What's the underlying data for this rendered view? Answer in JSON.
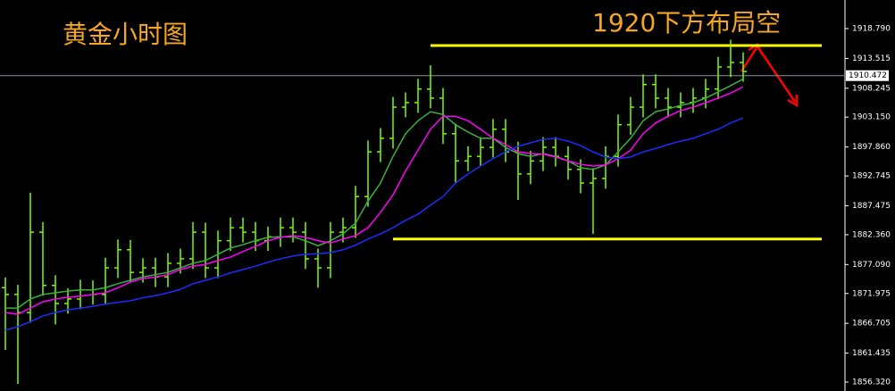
{
  "chart_data": {
    "type": "ohlc",
    "title": "黄金小时图",
    "annotation": "1920下方布局空",
    "bar_color": "#7cfc00",
    "open": [
      1873.0,
      1871.8,
      1868.6,
      1882.8,
      1873.4,
      1870.2,
      1871.0,
      1872.6,
      1871.8,
      1876.5,
      1879.7,
      1875.7,
      1876.5,
      1874.9,
      1877.3,
      1878.1,
      1882.8,
      1876.5,
      1881.3,
      1883.6,
      1882.8,
      1881.3,
      1882.0,
      1883.6,
      1882.8,
      1878.1,
      1876.5,
      1882.8,
      1883.6,
      1889.1,
      1897.0,
      1899.4,
      1904.9,
      1905.7,
      1908.1,
      1906.5,
      1900.2,
      1895.4,
      1896.2,
      1897.8,
      1901.0,
      1897.0,
      1893.1,
      1895.4,
      1897.8,
      1896.2,
      1893.9,
      1891.5,
      1892.3,
      1896.2,
      1901.8,
      1904.9,
      1908.9,
      1906.5,
      1904.9,
      1905.7,
      1906.5,
      1908.1,
      1912.0,
      1912.8
    ],
    "high": [
      1874.8,
      1873.5,
      1889.8,
      1884.6,
      1875.2,
      1872.9,
      1874.4,
      1874.3,
      1878.3,
      1881.5,
      1881.4,
      1878.2,
      1878.3,
      1879.1,
      1879.9,
      1884.6,
      1884.5,
      1883.1,
      1885.4,
      1885.4,
      1884.6,
      1883.8,
      1885.4,
      1885.4,
      1884.6,
      1879.9,
      1884.6,
      1885.4,
      1891.0,
      1899.0,
      1901.2,
      1906.7,
      1907.5,
      1909.9,
      1912.3,
      1908.3,
      1902.0,
      1898.0,
      1899.6,
      1902.8,
      1902.8,
      1898.8,
      1897.2,
      1899.6,
      1899.6,
      1898.0,
      1895.7,
      1894.1,
      1898.0,
      1903.6,
      1906.7,
      1910.7,
      1910.7,
      1908.3,
      1907.5,
      1908.3,
      1909.9,
      1913.8,
      1916.8,
      1914.6
    ],
    "low": [
      1862.0,
      1856.0,
      1866.8,
      1871.6,
      1866.5,
      1868.4,
      1869.2,
      1870.0,
      1870.0,
      1874.7,
      1873.9,
      1873.9,
      1873.1,
      1873.1,
      1875.5,
      1876.3,
      1874.7,
      1874.7,
      1879.5,
      1881.0,
      1879.5,
      1879.5,
      1880.2,
      1881.0,
      1876.3,
      1873.0,
      1874.7,
      1881.0,
      1881.8,
      1887.3,
      1895.2,
      1897.6,
      1903.1,
      1903.9,
      1904.7,
      1898.4,
      1891.5,
      1893.6,
      1894.4,
      1896.0,
      1895.2,
      1888.5,
      1891.3,
      1893.6,
      1894.4,
      1892.1,
      1889.7,
      1882.5,
      1890.5,
      1894.4,
      1900.0,
      1903.1,
      1904.7,
      1903.1,
      1903.1,
      1903.9,
      1904.7,
      1906.3,
      1910.2,
      1909.4
    ],
    "close": [
      1871.8,
      1868.6,
      1882.8,
      1873.4,
      1870.2,
      1871.0,
      1872.6,
      1871.8,
      1876.5,
      1879.7,
      1875.7,
      1876.5,
      1874.9,
      1877.3,
      1878.1,
      1882.8,
      1876.5,
      1881.3,
      1883.6,
      1882.8,
      1881.3,
      1882.0,
      1883.6,
      1882.8,
      1878.1,
      1876.5,
      1882.8,
      1883.6,
      1889.1,
      1897.0,
      1899.4,
      1904.9,
      1905.7,
      1908.1,
      1906.5,
      1900.2,
      1895.4,
      1896.2,
      1897.8,
      1901.0,
      1897.0,
      1893.1,
      1895.4,
      1897.8,
      1896.2,
      1893.9,
      1891.5,
      1892.3,
      1896.2,
      1901.8,
      1904.9,
      1908.9,
      1906.5,
      1904.9,
      1905.7,
      1906.5,
      1908.1,
      1912.0,
      1912.8,
      1911.2
    ],
    "series": [
      {
        "color": "#3cb043",
        "values": [
          1869.4,
          1869.4,
          1871.0,
          1871.8,
          1872.1,
          1872.4,
          1872.6,
          1872.6,
          1873.0,
          1873.7,
          1874.3,
          1874.9,
          1875.3,
          1875.7,
          1876.5,
          1877.3,
          1877.8,
          1878.9,
          1880.0,
          1880.6,
          1881.3,
          1881.9,
          1882.0,
          1882.0,
          1881.3,
          1880.4,
          1881.3,
          1882.5,
          1884.4,
          1888.3,
          1891.5,
          1896.2,
          1900.2,
          1902.5,
          1904.1,
          1903.6,
          1901.8,
          1900.5,
          1899.4,
          1899.4,
          1897.8,
          1896.7,
          1896.2,
          1896.7,
          1896.2,
          1895.4,
          1894.2,
          1893.9,
          1894.7,
          1897.0,
          1899.4,
          1902.5,
          1904.1,
          1904.6,
          1905.2,
          1905.7,
          1906.5,
          1907.6,
          1908.7,
          1909.9
        ]
      },
      {
        "color": "#ff00ff",
        "values": [
          1868.6,
          1868.3,
          1869.4,
          1870.5,
          1871.0,
          1871.3,
          1871.5,
          1871.8,
          1872.1,
          1873.0,
          1874.0,
          1874.6,
          1874.9,
          1875.3,
          1876.2,
          1876.8,
          1877.1,
          1877.8,
          1878.4,
          1879.4,
          1880.3,
          1881.3,
          1881.9,
          1882.2,
          1881.9,
          1881.3,
          1880.9,
          1881.6,
          1882.2,
          1883.6,
          1886.3,
          1889.4,
          1893.6,
          1897.3,
          1901.0,
          1903.3,
          1903.3,
          1902.5,
          1901.0,
          1899.4,
          1898.3,
          1897.0,
          1896.7,
          1896.6,
          1896.1,
          1895.4,
          1894.8,
          1894.5,
          1894.7,
          1895.8,
          1897.3,
          1900.2,
          1902.1,
          1903.3,
          1904.3,
          1904.9,
          1905.7,
          1906.5,
          1907.4,
          1908.5
        ]
      },
      {
        "color": "#1e2cff",
        "values": [
          1865.5,
          1866.1,
          1867.0,
          1868.0,
          1868.6,
          1869.1,
          1869.4,
          1869.7,
          1870.1,
          1870.4,
          1870.7,
          1871.2,
          1871.6,
          1872.1,
          1872.7,
          1873.7,
          1874.3,
          1874.9,
          1875.6,
          1876.2,
          1876.8,
          1877.5,
          1878.1,
          1878.6,
          1878.9,
          1879.0,
          1879.2,
          1879.7,
          1880.5,
          1881.6,
          1882.5,
          1883.6,
          1884.9,
          1886.0,
          1887.6,
          1889.1,
          1891.5,
          1893.1,
          1894.5,
          1895.8,
          1897.0,
          1898.0,
          1898.6,
          1899.2,
          1899.4,
          1898.9,
          1898.1,
          1897.0,
          1896.1,
          1895.8,
          1896.1,
          1897.0,
          1897.6,
          1898.3,
          1898.9,
          1899.4,
          1900.2,
          1901.0,
          1902.1,
          1903.0
        ]
      }
    ],
    "levels": [
      {
        "value": 1915.8,
        "from": 34,
        "color": "#ffff00"
      },
      {
        "value": 1881.6,
        "from": 31,
        "color": "#ffff00"
      }
    ],
    "last_price": 1910.472,
    "ylim": [
      1854.74,
      1923.84
    ],
    "yticks": [
      {
        "value": 1918.79,
        "label": "1918.790"
      },
      {
        "value": 1913.515,
        "label": "1913.515"
      },
      {
        "value": 1908.245,
        "label": "1908.245"
      },
      {
        "value": 1903.15,
        "label": "1903.150"
      },
      {
        "value": 1897.86,
        "label": "1897.860"
      },
      {
        "value": 1892.745,
        "label": "1892.745"
      },
      {
        "value": 1887.475,
        "label": "1887.475"
      },
      {
        "value": 1882.36,
        "label": "1882.360"
      },
      {
        "value": 1877.09,
        "label": "1877.090"
      },
      {
        "value": 1871.975,
        "label": "1871.975"
      },
      {
        "value": 1866.705,
        "label": "1866.705"
      },
      {
        "value": 1861.435,
        "label": "1861.435"
      },
      {
        "value": 1856.32,
        "label": "1856.320"
      }
    ]
  }
}
